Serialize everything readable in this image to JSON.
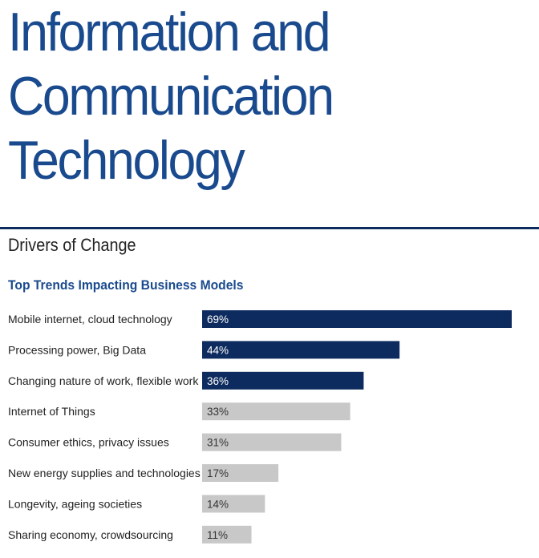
{
  "header": {
    "title_lines": [
      "Information and",
      "Communication",
      "Technology"
    ],
    "section_label": "Drivers of Change"
  },
  "colors": {
    "title": "#1a4a8e",
    "rule": "#0d2b5e",
    "bar_highlight": "#0d2b5e",
    "bar_muted": "#c8c8c8",
    "label_on_highlight": "#ffffff",
    "label_on_muted": "#333333"
  },
  "chart_data": {
    "type": "bar",
    "orientation": "horizontal",
    "title": "Top Trends Impacting Business Models",
    "xlabel": "",
    "ylabel": "",
    "xlim": [
      0,
      69
    ],
    "grid": false,
    "legend": "none",
    "categories": [
      "Mobile internet, cloud technology",
      "Processing power, Big Data",
      "Changing nature of work, flexible work",
      "Internet of Things",
      "Consumer ethics, privacy issues",
      "New energy supplies and technologies",
      "Longevity, ageing societies",
      "Sharing economy, crowdsourcing"
    ],
    "values": [
      69,
      44,
      36,
      33,
      31,
      17,
      14,
      11
    ],
    "value_labels": [
      "69%",
      "44%",
      "36%",
      "33%",
      "31%",
      "17%",
      "14%",
      "11%"
    ],
    "highlighted": [
      true,
      true,
      true,
      false,
      false,
      false,
      false,
      false
    ]
  }
}
